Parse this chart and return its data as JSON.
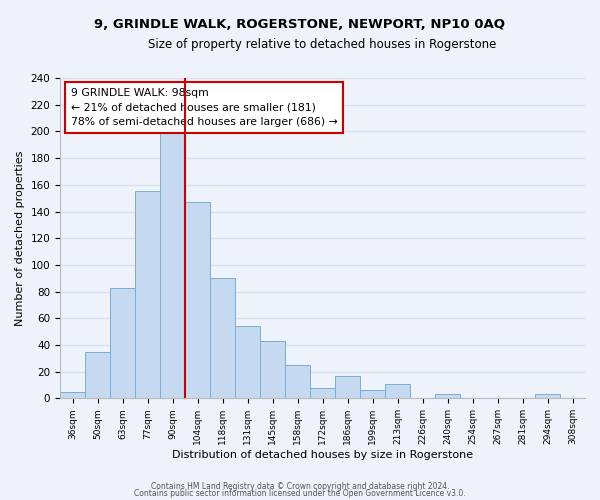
{
  "title": "9, GRINDLE WALK, ROGERSTONE, NEWPORT, NP10 0AQ",
  "subtitle": "Size of property relative to detached houses in Rogerstone",
  "xlabel": "Distribution of detached houses by size in Rogerstone",
  "ylabel": "Number of detached properties",
  "bar_color": "#c5d9f0",
  "bar_edge_color": "#7aadd4",
  "categories": [
    "36sqm",
    "50sqm",
    "63sqm",
    "77sqm",
    "90sqm",
    "104sqm",
    "118sqm",
    "131sqm",
    "145sqm",
    "158sqm",
    "172sqm",
    "186sqm",
    "199sqm",
    "213sqm",
    "226sqm",
    "240sqm",
    "254sqm",
    "267sqm",
    "281sqm",
    "294sqm",
    "308sqm"
  ],
  "values": [
    5,
    35,
    83,
    155,
    200,
    147,
    90,
    54,
    43,
    25,
    8,
    17,
    6,
    11,
    0,
    3,
    0,
    0,
    0,
    3,
    0
  ],
  "vline_color": "#cc0000",
  "annotation_title": "9 GRINDLE WALK: 98sqm",
  "annotation_line1": "← 21% of detached houses are smaller (181)",
  "annotation_line2": "78% of semi-detached houses are larger (686) →",
  "ylim": [
    0,
    240
  ],
  "yticks": [
    0,
    20,
    40,
    60,
    80,
    100,
    120,
    140,
    160,
    180,
    200,
    220,
    240
  ],
  "footer1": "Contains HM Land Registry data © Crown copyright and database right 2024.",
  "footer2": "Contains public sector information licensed under the Open Government Licence v3.0.",
  "background_color": "#eef2fa",
  "grid_color": "#d8e0f0"
}
